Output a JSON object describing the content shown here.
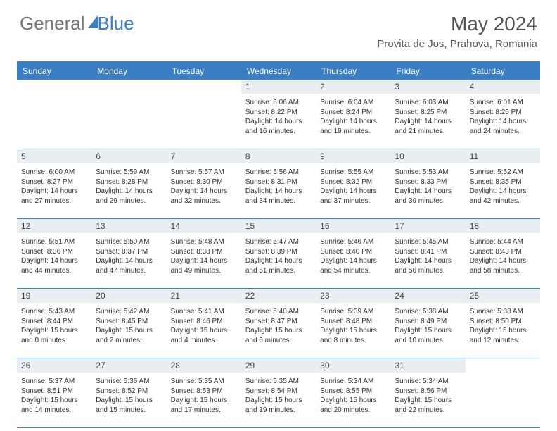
{
  "brand": {
    "part1": "General",
    "part2": "Blue"
  },
  "title": "May 2024",
  "location": "Provita de Jos, Prahova, Romania",
  "weekdays": [
    "Sunday",
    "Monday",
    "Tuesday",
    "Wednesday",
    "Thursday",
    "Friday",
    "Saturday"
  ],
  "colors": {
    "accent": "#3a7fc4",
    "dayStripe": "#e9eef3",
    "text": "#333333",
    "headerText": "#555555",
    "background": "#ffffff"
  },
  "typography": {
    "titleSize": 28,
    "locationSize": 15,
    "weekdaySize": 12,
    "dayNumSize": 12,
    "bodySize": 10
  },
  "weeks": [
    [
      {
        "n": "",
        "sr": "",
        "ss": "",
        "d1": "",
        "d2": ""
      },
      {
        "n": "",
        "sr": "",
        "ss": "",
        "d1": "",
        "d2": ""
      },
      {
        "n": "",
        "sr": "",
        "ss": "",
        "d1": "",
        "d2": ""
      },
      {
        "n": "1",
        "sr": "Sunrise: 6:06 AM",
        "ss": "Sunset: 8:22 PM",
        "d1": "Daylight: 14 hours",
        "d2": "and 16 minutes."
      },
      {
        "n": "2",
        "sr": "Sunrise: 6:04 AM",
        "ss": "Sunset: 8:24 PM",
        "d1": "Daylight: 14 hours",
        "d2": "and 19 minutes."
      },
      {
        "n": "3",
        "sr": "Sunrise: 6:03 AM",
        "ss": "Sunset: 8:25 PM",
        "d1": "Daylight: 14 hours",
        "d2": "and 21 minutes."
      },
      {
        "n": "4",
        "sr": "Sunrise: 6:01 AM",
        "ss": "Sunset: 8:26 PM",
        "d1": "Daylight: 14 hours",
        "d2": "and 24 minutes."
      }
    ],
    [
      {
        "n": "5",
        "sr": "Sunrise: 6:00 AM",
        "ss": "Sunset: 8:27 PM",
        "d1": "Daylight: 14 hours",
        "d2": "and 27 minutes."
      },
      {
        "n": "6",
        "sr": "Sunrise: 5:59 AM",
        "ss": "Sunset: 8:28 PM",
        "d1": "Daylight: 14 hours",
        "d2": "and 29 minutes."
      },
      {
        "n": "7",
        "sr": "Sunrise: 5:57 AM",
        "ss": "Sunset: 8:30 PM",
        "d1": "Daylight: 14 hours",
        "d2": "and 32 minutes."
      },
      {
        "n": "8",
        "sr": "Sunrise: 5:56 AM",
        "ss": "Sunset: 8:31 PM",
        "d1": "Daylight: 14 hours",
        "d2": "and 34 minutes."
      },
      {
        "n": "9",
        "sr": "Sunrise: 5:55 AM",
        "ss": "Sunset: 8:32 PM",
        "d1": "Daylight: 14 hours",
        "d2": "and 37 minutes."
      },
      {
        "n": "10",
        "sr": "Sunrise: 5:53 AM",
        "ss": "Sunset: 8:33 PM",
        "d1": "Daylight: 14 hours",
        "d2": "and 39 minutes."
      },
      {
        "n": "11",
        "sr": "Sunrise: 5:52 AM",
        "ss": "Sunset: 8:35 PM",
        "d1": "Daylight: 14 hours",
        "d2": "and 42 minutes."
      }
    ],
    [
      {
        "n": "12",
        "sr": "Sunrise: 5:51 AM",
        "ss": "Sunset: 8:36 PM",
        "d1": "Daylight: 14 hours",
        "d2": "and 44 minutes."
      },
      {
        "n": "13",
        "sr": "Sunrise: 5:50 AM",
        "ss": "Sunset: 8:37 PM",
        "d1": "Daylight: 14 hours",
        "d2": "and 47 minutes."
      },
      {
        "n": "14",
        "sr": "Sunrise: 5:48 AM",
        "ss": "Sunset: 8:38 PM",
        "d1": "Daylight: 14 hours",
        "d2": "and 49 minutes."
      },
      {
        "n": "15",
        "sr": "Sunrise: 5:47 AM",
        "ss": "Sunset: 8:39 PM",
        "d1": "Daylight: 14 hours",
        "d2": "and 51 minutes."
      },
      {
        "n": "16",
        "sr": "Sunrise: 5:46 AM",
        "ss": "Sunset: 8:40 PM",
        "d1": "Daylight: 14 hours",
        "d2": "and 54 minutes."
      },
      {
        "n": "17",
        "sr": "Sunrise: 5:45 AM",
        "ss": "Sunset: 8:41 PM",
        "d1": "Daylight: 14 hours",
        "d2": "and 56 minutes."
      },
      {
        "n": "18",
        "sr": "Sunrise: 5:44 AM",
        "ss": "Sunset: 8:43 PM",
        "d1": "Daylight: 14 hours",
        "d2": "and 58 minutes."
      }
    ],
    [
      {
        "n": "19",
        "sr": "Sunrise: 5:43 AM",
        "ss": "Sunset: 8:44 PM",
        "d1": "Daylight: 15 hours",
        "d2": "and 0 minutes."
      },
      {
        "n": "20",
        "sr": "Sunrise: 5:42 AM",
        "ss": "Sunset: 8:45 PM",
        "d1": "Daylight: 15 hours",
        "d2": "and 2 minutes."
      },
      {
        "n": "21",
        "sr": "Sunrise: 5:41 AM",
        "ss": "Sunset: 8:46 PM",
        "d1": "Daylight: 15 hours",
        "d2": "and 4 minutes."
      },
      {
        "n": "22",
        "sr": "Sunrise: 5:40 AM",
        "ss": "Sunset: 8:47 PM",
        "d1": "Daylight: 15 hours",
        "d2": "and 6 minutes."
      },
      {
        "n": "23",
        "sr": "Sunrise: 5:39 AM",
        "ss": "Sunset: 8:48 PM",
        "d1": "Daylight: 15 hours",
        "d2": "and 8 minutes."
      },
      {
        "n": "24",
        "sr": "Sunrise: 5:38 AM",
        "ss": "Sunset: 8:49 PM",
        "d1": "Daylight: 15 hours",
        "d2": "and 10 minutes."
      },
      {
        "n": "25",
        "sr": "Sunrise: 5:38 AM",
        "ss": "Sunset: 8:50 PM",
        "d1": "Daylight: 15 hours",
        "d2": "and 12 minutes."
      }
    ],
    [
      {
        "n": "26",
        "sr": "Sunrise: 5:37 AM",
        "ss": "Sunset: 8:51 PM",
        "d1": "Daylight: 15 hours",
        "d2": "and 14 minutes."
      },
      {
        "n": "27",
        "sr": "Sunrise: 5:36 AM",
        "ss": "Sunset: 8:52 PM",
        "d1": "Daylight: 15 hours",
        "d2": "and 15 minutes."
      },
      {
        "n": "28",
        "sr": "Sunrise: 5:35 AM",
        "ss": "Sunset: 8:53 PM",
        "d1": "Daylight: 15 hours",
        "d2": "and 17 minutes."
      },
      {
        "n": "29",
        "sr": "Sunrise: 5:35 AM",
        "ss": "Sunset: 8:54 PM",
        "d1": "Daylight: 15 hours",
        "d2": "and 19 minutes."
      },
      {
        "n": "30",
        "sr": "Sunrise: 5:34 AM",
        "ss": "Sunset: 8:55 PM",
        "d1": "Daylight: 15 hours",
        "d2": "and 20 minutes."
      },
      {
        "n": "31",
        "sr": "Sunrise: 5:34 AM",
        "ss": "Sunset: 8:56 PM",
        "d1": "Daylight: 15 hours",
        "d2": "and 22 minutes."
      },
      {
        "n": "",
        "sr": "",
        "ss": "",
        "d1": "",
        "d2": ""
      }
    ]
  ]
}
